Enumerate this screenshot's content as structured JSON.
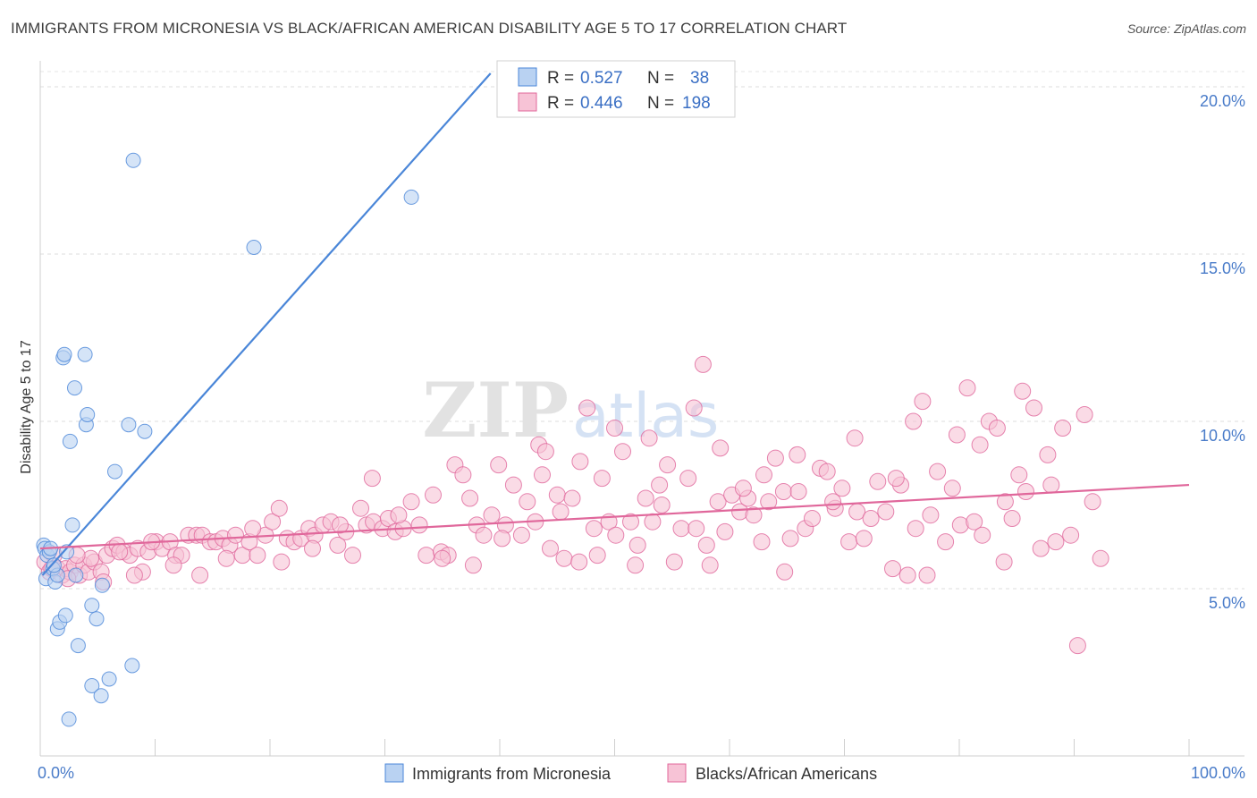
{
  "title": "IMMIGRANTS FROM MICRONESIA VS BLACK/AFRICAN AMERICAN DISABILITY AGE 5 TO 17 CORRELATION CHART",
  "source": "Source: ZipAtlas.com",
  "colors": {
    "blue": "#4a86d8",
    "blue_fill": "#b9d2f2",
    "pink": "#e0679b",
    "pink_fill": "#f7c3d6",
    "tick": "#4a7cc9"
  },
  "legend": {
    "r_label": "R =",
    "n_label": "N =",
    "entries": [
      {
        "r": "0.527",
        "n": "38"
      },
      {
        "r": "0.446",
        "n": "198"
      }
    ]
  },
  "chart_data": {
    "type": "scatter",
    "title": "IMMIGRANTS FROM MICRONESIA VS BLACK/AFRICAN AMERICAN DISABILITY AGE 5 TO 17 CORRELATION CHART",
    "xlabel": "",
    "ylabel": "Disability Age 5 to 17",
    "xlim": [
      0,
      100
    ],
    "ylim": [
      0,
      20.5
    ],
    "x_tick_labels": [
      "0.0%",
      "100.0%"
    ],
    "y_ticks": [
      5,
      10,
      15,
      20
    ],
    "y_tick_labels": [
      "5.0%",
      "10.0%",
      "15.0%",
      "20.0%"
    ],
    "grid": "horizontal dashed",
    "legend_position": "top-center",
    "watermark": "ZIPatlas",
    "series": [
      {
        "name": "Immigrants from Micronesia",
        "color": "#4a86d8",
        "trend": {
          "x": [
            0.2,
            39.2
          ],
          "y": [
            5.4,
            20.4
          ]
        },
        "points": [
          [
            0.3,
            6.3
          ],
          [
            0.4,
            6.2
          ],
          [
            0.5,
            5.3
          ],
          [
            0.6,
            6.0
          ],
          [
            0.8,
            6.1
          ],
          [
            1.1,
            5.6
          ],
          [
            1.3,
            5.2
          ],
          [
            1.5,
            5.4
          ],
          [
            2.0,
            11.9
          ],
          [
            2.1,
            12.0
          ],
          [
            2.3,
            6.1
          ],
          [
            2.6,
            9.4
          ],
          [
            2.8,
            6.9
          ],
          [
            3.0,
            11.0
          ],
          [
            3.1,
            5.4
          ],
          [
            3.9,
            12.0
          ],
          [
            4.0,
            9.9
          ],
          [
            4.1,
            10.2
          ],
          [
            4.5,
            4.5
          ],
          [
            4.9,
            4.1
          ],
          [
            5.4,
            5.1
          ],
          [
            6.5,
            8.5
          ],
          [
            7.7,
            9.9
          ],
          [
            8.1,
            17.8
          ],
          [
            9.1,
            9.7
          ],
          [
            18.6,
            15.2
          ],
          [
            32.3,
            16.7
          ],
          [
            1.5,
            3.8
          ],
          [
            1.7,
            4.0
          ],
          [
            2.2,
            4.2
          ],
          [
            3.3,
            3.3
          ],
          [
            4.5,
            2.1
          ],
          [
            5.3,
            1.8
          ],
          [
            6.0,
            2.3
          ],
          [
            8.0,
            2.7
          ],
          [
            2.5,
            1.1
          ],
          [
            0.9,
            6.2
          ],
          [
            1.2,
            5.7
          ]
        ]
      },
      {
        "name": "Blacks/African Americans",
        "color": "#e0679b",
        "trend": {
          "x": [
            0.0,
            100.0
          ],
          "y": [
            6.2,
            8.1
          ]
        },
        "points": [
          [
            0.4,
            5.8
          ],
          [
            0.8,
            5.5
          ],
          [
            1.2,
            6.0
          ],
          [
            1.5,
            5.6
          ],
          [
            1.9,
            5.4
          ],
          [
            2.2,
            5.6
          ],
          [
            2.6,
            5.5
          ],
          [
            3.0,
            5.7
          ],
          [
            3.4,
            5.4
          ],
          [
            3.8,
            5.7
          ],
          [
            4.2,
            5.5
          ],
          [
            4.7,
            5.8
          ],
          [
            5.3,
            5.5
          ],
          [
            5.8,
            6.0
          ],
          [
            6.3,
            6.2
          ],
          [
            6.7,
            6.3
          ],
          [
            7.3,
            6.1
          ],
          [
            7.8,
            6.0
          ],
          [
            8.5,
            6.2
          ],
          [
            8.9,
            5.5
          ],
          [
            9.4,
            6.1
          ],
          [
            10.1,
            6.4
          ],
          [
            10.6,
            6.2
          ],
          [
            11.3,
            6.4
          ],
          [
            11.8,
            6.0
          ],
          [
            12.3,
            6.0
          ],
          [
            12.9,
            6.6
          ],
          [
            13.6,
            6.6
          ],
          [
            14.1,
            6.6
          ],
          [
            14.8,
            6.4
          ],
          [
            15.3,
            6.4
          ],
          [
            15.9,
            6.5
          ],
          [
            16.5,
            6.3
          ],
          [
            17.0,
            6.6
          ],
          [
            17.6,
            6.0
          ],
          [
            18.2,
            6.4
          ],
          [
            18.9,
            6.0
          ],
          [
            19.6,
            6.6
          ],
          [
            20.2,
            7.0
          ],
          [
            20.8,
            7.4
          ],
          [
            21.5,
            6.5
          ],
          [
            22.1,
            6.4
          ],
          [
            22.7,
            6.5
          ],
          [
            23.4,
            6.8
          ],
          [
            23.9,
            6.6
          ],
          [
            24.6,
            6.9
          ],
          [
            25.3,
            7.0
          ],
          [
            25.9,
            6.3
          ],
          [
            26.6,
            6.7
          ],
          [
            27.2,
            6.0
          ],
          [
            27.9,
            7.4
          ],
          [
            28.4,
            6.9
          ],
          [
            29.0,
            7.0
          ],
          [
            29.8,
            6.8
          ],
          [
            30.3,
            7.1
          ],
          [
            30.9,
            6.7
          ],
          [
            31.6,
            6.8
          ],
          [
            32.3,
            7.6
          ],
          [
            33.0,
            6.9
          ],
          [
            33.6,
            6.0
          ],
          [
            34.2,
            7.8
          ],
          [
            34.9,
            6.1
          ],
          [
            35.5,
            6.0
          ],
          [
            36.1,
            8.7
          ],
          [
            36.8,
            8.4
          ],
          [
            37.4,
            7.7
          ],
          [
            38.0,
            6.9
          ],
          [
            38.6,
            6.6
          ],
          [
            39.3,
            7.2
          ],
          [
            39.9,
            8.7
          ],
          [
            40.5,
            6.9
          ],
          [
            41.2,
            8.1
          ],
          [
            41.9,
            6.6
          ],
          [
            42.4,
            7.6
          ],
          [
            43.1,
            7.0
          ],
          [
            43.7,
            8.4
          ],
          [
            44.4,
            6.2
          ],
          [
            45.0,
            7.8
          ],
          [
            45.6,
            5.9
          ],
          [
            46.3,
            7.7
          ],
          [
            46.9,
            5.8
          ],
          [
            47.6,
            10.4
          ],
          [
            48.2,
            6.8
          ],
          [
            48.9,
            8.3
          ],
          [
            49.5,
            7.0
          ],
          [
            50.1,
            6.6
          ],
          [
            50.7,
            9.1
          ],
          [
            51.4,
            7.0
          ],
          [
            52.0,
            6.3
          ],
          [
            52.7,
            7.7
          ],
          [
            53.3,
            7.0
          ],
          [
            53.9,
            8.1
          ],
          [
            54.6,
            8.7
          ],
          [
            55.2,
            5.8
          ],
          [
            55.8,
            6.8
          ],
          [
            56.4,
            8.3
          ],
          [
            57.1,
            6.8
          ],
          [
            57.7,
            11.7
          ],
          [
            58.3,
            5.7
          ],
          [
            59.0,
            7.6
          ],
          [
            59.6,
            6.7
          ],
          [
            60.2,
            7.8
          ],
          [
            60.9,
            7.3
          ],
          [
            61.6,
            7.7
          ],
          [
            62.1,
            7.2
          ],
          [
            62.8,
            6.4
          ],
          [
            63.4,
            7.6
          ],
          [
            64.0,
            8.9
          ],
          [
            64.7,
            7.9
          ],
          [
            65.3,
            6.5
          ],
          [
            65.9,
            9.0
          ],
          [
            66.6,
            6.8
          ],
          [
            67.2,
            7.1
          ],
          [
            67.9,
            8.6
          ],
          [
            68.5,
            8.5
          ],
          [
            69.2,
            7.4
          ],
          [
            69.8,
            8.0
          ],
          [
            70.4,
            6.4
          ],
          [
            71.1,
            7.3
          ],
          [
            71.7,
            6.5
          ],
          [
            72.3,
            7.1
          ],
          [
            72.9,
            8.2
          ],
          [
            73.6,
            7.3
          ],
          [
            74.2,
            5.6
          ],
          [
            74.9,
            8.1
          ],
          [
            75.5,
            5.4
          ],
          [
            76.2,
            6.8
          ],
          [
            76.8,
            10.6
          ],
          [
            77.5,
            7.2
          ],
          [
            78.1,
            8.5
          ],
          [
            78.8,
            6.4
          ],
          [
            79.4,
            8.0
          ],
          [
            80.1,
            6.9
          ],
          [
            80.7,
            11.0
          ],
          [
            81.3,
            7.0
          ],
          [
            82.0,
            6.6
          ],
          [
            82.6,
            10.0
          ],
          [
            83.3,
            9.8
          ],
          [
            83.9,
            5.8
          ],
          [
            84.6,
            7.1
          ],
          [
            85.2,
            8.4
          ],
          [
            85.8,
            7.9
          ],
          [
            86.5,
            10.4
          ],
          [
            87.1,
            6.2
          ],
          [
            87.7,
            9.0
          ],
          [
            88.4,
            6.4
          ],
          [
            89.0,
            9.8
          ],
          [
            89.7,
            6.6
          ],
          [
            90.3,
            3.3
          ],
          [
            90.9,
            10.2
          ],
          [
            91.6,
            7.6
          ],
          [
            77.2,
            5.4
          ],
          [
            64.8,
            5.5
          ],
          [
            61.2,
            8.0
          ],
          [
            58.0,
            6.3
          ],
          [
            54.1,
            7.5
          ],
          [
            51.8,
            5.7
          ],
          [
            48.5,
            6.0
          ],
          [
            45.3,
            7.3
          ],
          [
            43.4,
            9.3
          ],
          [
            40.2,
            6.5
          ],
          [
            37.7,
            5.7
          ],
          [
            35.0,
            5.9
          ],
          [
            31.2,
            7.2
          ],
          [
            28.9,
            8.3
          ],
          [
            26.1,
            6.9
          ],
          [
            23.7,
            6.2
          ],
          [
            21.0,
            5.8
          ],
          [
            18.5,
            6.8
          ],
          [
            16.2,
            5.9
          ],
          [
            13.9,
            5.4
          ],
          [
            11.6,
            5.7
          ],
          [
            9.7,
            6.4
          ],
          [
            8.2,
            5.4
          ],
          [
            6.9,
            6.1
          ],
          [
            5.5,
            5.2
          ],
          [
            4.4,
            5.9
          ],
          [
            3.2,
            6.0
          ],
          [
            2.4,
            5.3
          ],
          [
            1.0,
            5.6
          ],
          [
            66.0,
            7.9
          ],
          [
            70.9,
            9.5
          ],
          [
            74.5,
            8.3
          ],
          [
            79.8,
            9.6
          ],
          [
            84.0,
            7.6
          ],
          [
            88.0,
            8.1
          ],
          [
            92.3,
            5.9
          ],
          [
            85.5,
            10.9
          ],
          [
            81.8,
            9.3
          ],
          [
            76.0,
            10.0
          ],
          [
            69.0,
            7.6
          ],
          [
            63.0,
            8.4
          ],
          [
            59.2,
            9.2
          ],
          [
            56.9,
            10.4
          ],
          [
            53.0,
            9.5
          ],
          [
            50.0,
            9.8
          ],
          [
            47.0,
            8.8
          ],
          [
            44.0,
            9.1
          ]
        ]
      }
    ]
  },
  "bottom_legend": [
    {
      "label": "Immigrants from Micronesia"
    },
    {
      "label": "Blacks/African Americans"
    }
  ]
}
